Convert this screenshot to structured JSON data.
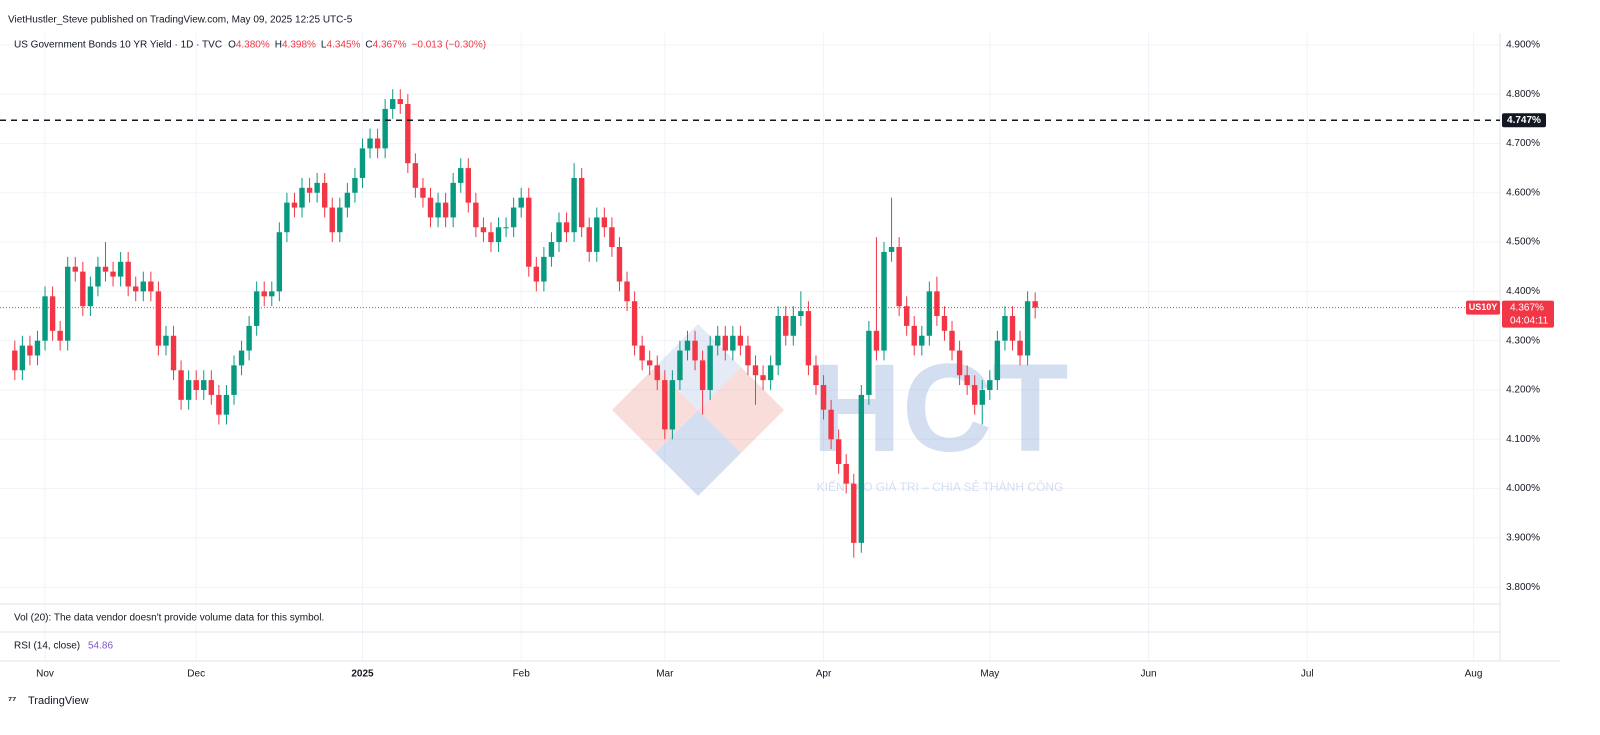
{
  "header": {
    "publisher": "VietHustler_Steve published on TradingView.com, May 09, 2025 12:25 UTC-5"
  },
  "chart_data": {
    "type": "candlestick",
    "symbol_title": "US Government Bonds 10 YR Yield · 1D · TVC",
    "ohlc_legend": [
      {
        "key": "O",
        "text": "4.380%"
      },
      {
        "key": "H",
        "text": "4.398%"
      },
      {
        "key": "L",
        "text": "4.345%"
      },
      {
        "key": "C",
        "text": "4.367%"
      }
    ],
    "change": "−0.013 (−0.30%)",
    "up_color": "#089981",
    "down_color": "#f23645",
    "x": [
      -4,
      -3,
      -2,
      -1,
      0,
      1,
      2,
      3,
      4,
      5,
      6,
      7,
      8,
      9,
      10,
      11,
      12,
      13,
      14,
      15,
      16,
      17,
      18,
      19,
      20,
      21,
      22,
      23,
      24,
      25,
      26,
      27,
      28,
      29,
      30,
      31,
      32,
      33,
      34,
      35,
      36,
      37,
      38,
      39,
      40,
      41,
      42,
      43,
      44,
      45,
      46,
      47,
      48,
      49,
      50,
      51,
      52,
      53,
      54,
      55,
      56,
      57,
      58,
      59,
      60,
      61,
      62,
      63,
      64,
      65,
      66,
      67,
      68,
      69,
      70,
      71,
      72,
      73,
      74,
      75,
      76,
      77,
      78,
      79,
      80,
      81,
      82,
      83,
      84,
      85,
      86,
      87,
      88,
      89,
      90,
      91,
      92,
      93,
      94,
      95,
      96,
      97,
      98,
      99,
      100,
      101,
      102,
      103,
      104,
      105,
      106,
      107,
      108,
      109,
      110,
      111,
      112,
      113,
      114,
      115,
      116,
      117,
      118,
      119,
      120,
      121,
      122,
      123,
      124,
      125,
      126,
      127,
      128,
      129,
      130,
      131
    ],
    "open": [
      4.28,
      4.24,
      4.29,
      4.27,
      4.3,
      4.39,
      4.32,
      4.3,
      4.45,
      4.44,
      4.37,
      4.41,
      4.45,
      4.44,
      4.43,
      4.46,
      4.41,
      4.4,
      4.42,
      4.4,
      4.29,
      4.31,
      4.24,
      4.18,
      4.22,
      4.2,
      4.22,
      4.19,
      4.15,
      4.19,
      4.25,
      4.28,
      4.33,
      4.4,
      4.39,
      4.4,
      4.52,
      4.58,
      4.57,
      4.61,
      4.6,
      4.62,
      4.57,
      4.52,
      4.57,
      4.6,
      4.63,
      4.69,
      4.71,
      4.69,
      4.77,
      4.79,
      4.78,
      4.66,
      4.61,
      4.59,
      4.55,
      4.58,
      4.55,
      4.62,
      4.65,
      4.58,
      4.53,
      4.52,
      4.5,
      4.53,
      4.53,
      4.57,
      4.59,
      4.45,
      4.42,
      4.47,
      4.5,
      4.54,
      4.52,
      4.63,
      4.53,
      4.48,
      4.55,
      4.53,
      4.49,
      4.42,
      4.38,
      4.29,
      4.26,
      4.25,
      4.22,
      4.12,
      4.22,
      4.28,
      4.3,
      4.26,
      4.2,
      4.29,
      4.31,
      4.28,
      4.31,
      4.29,
      4.25,
      4.23,
      4.22,
      4.25,
      4.35,
      4.31,
      4.35,
      4.36,
      4.25,
      4.21,
      4.16,
      4.1,
      4.05,
      4.01,
      3.89,
      4.19,
      4.32,
      4.28,
      4.48,
      4.49,
      4.37,
      4.33,
      4.29,
      4.31,
      4.4,
      4.35,
      4.32,
      4.28,
      4.23,
      4.21,
      4.17,
      4.2,
      4.22,
      4.3,
      4.35,
      4.3,
      4.27,
      4.38
    ],
    "high": [
      4.3,
      4.31,
      4.31,
      4.32,
      4.41,
      4.41,
      4.34,
      4.47,
      4.47,
      4.46,
      4.43,
      4.47,
      4.5,
      4.46,
      4.48,
      4.48,
      4.43,
      4.44,
      4.44,
      4.42,
      4.33,
      4.33,
      4.26,
      4.24,
      4.24,
      4.24,
      4.24,
      4.21,
      4.21,
      4.27,
      4.3,
      4.35,
      4.42,
      4.42,
      4.42,
      4.54,
      4.6,
      4.6,
      4.63,
      4.63,
      4.64,
      4.64,
      4.59,
      4.59,
      4.62,
      4.65,
      4.71,
      4.73,
      4.73,
      4.79,
      4.81,
      4.81,
      4.8,
      4.68,
      4.63,
      4.61,
      4.6,
      4.6,
      4.64,
      4.67,
      4.67,
      4.6,
      4.55,
      4.54,
      4.55,
      4.55,
      4.59,
      4.61,
      4.61,
      4.47,
      4.49,
      4.52,
      4.56,
      4.56,
      4.66,
      4.65,
      4.55,
      4.57,
      4.57,
      4.55,
      4.51,
      4.44,
      4.4,
      4.31,
      4.28,
      4.27,
      4.24,
      4.24,
      4.3,
      4.32,
      4.32,
      4.28,
      4.31,
      4.33,
      4.33,
      4.33,
      4.33,
      4.31,
      4.27,
      4.25,
      4.27,
      4.37,
      4.37,
      4.37,
      4.4,
      4.38,
      4.27,
      4.23,
      4.18,
      4.12,
      4.07,
      4.03,
      4.21,
      4.34,
      4.51,
      4.5,
      4.59,
      4.51,
      4.39,
      4.35,
      4.33,
      4.42,
      4.43,
      4.37,
      4.34,
      4.3,
      4.25,
      4.23,
      4.22,
      4.24,
      4.32,
      4.37,
      4.37,
      4.32,
      4.4,
      4.398
    ],
    "low": [
      4.22,
      4.22,
      4.25,
      4.25,
      4.28,
      4.3,
      4.28,
      4.28,
      4.42,
      4.35,
      4.35,
      4.39,
      4.42,
      4.41,
      4.41,
      4.39,
      4.38,
      4.38,
      4.38,
      4.27,
      4.27,
      4.22,
      4.16,
      4.16,
      4.18,
      4.18,
      4.17,
      4.13,
      4.13,
      4.17,
      4.23,
      4.26,
      4.31,
      4.37,
      4.37,
      4.38,
      4.5,
      4.55,
      4.55,
      4.58,
      4.58,
      4.55,
      4.5,
      4.5,
      4.55,
      4.58,
      4.61,
      4.67,
      4.67,
      4.67,
      4.75,
      4.76,
      4.64,
      4.59,
      4.57,
      4.53,
      4.53,
      4.53,
      4.53,
      4.6,
      4.56,
      4.51,
      4.5,
      4.48,
      4.48,
      4.51,
      4.51,
      4.55,
      4.43,
      4.4,
      4.4,
      4.45,
      4.48,
      4.5,
      4.5,
      4.51,
      4.46,
      4.46,
      4.51,
      4.47,
      4.4,
      4.36,
      4.27,
      4.24,
      4.23,
      4.2,
      4.1,
      4.1,
      4.2,
      4.26,
      4.24,
      4.15,
      4.18,
      4.27,
      4.26,
      4.26,
      4.27,
      4.23,
      4.17,
      4.2,
      4.2,
      4.23,
      4.29,
      4.29,
      4.33,
      4.23,
      4.19,
      4.14,
      4.08,
      4.03,
      3.99,
      3.86,
      3.87,
      4.17,
      4.26,
      4.26,
      4.46,
      4.35,
      4.31,
      4.27,
      4.27,
      4.29,
      4.33,
      4.3,
      4.26,
      4.21,
      4.19,
      4.15,
      4.13,
      4.18,
      4.2,
      4.28,
      4.28,
      4.25,
      4.25,
      4.345
    ],
    "close": [
      4.24,
      4.29,
      4.27,
      4.3,
      4.39,
      4.32,
      4.3,
      4.45,
      4.44,
      4.37,
      4.41,
      4.45,
      4.44,
      4.43,
      4.46,
      4.41,
      4.4,
      4.42,
      4.4,
      4.29,
      4.31,
      4.24,
      4.18,
      4.22,
      4.2,
      4.22,
      4.19,
      4.15,
      4.19,
      4.25,
      4.28,
      4.33,
      4.4,
      4.39,
      4.4,
      4.52,
      4.58,
      4.57,
      4.61,
      4.6,
      4.62,
      4.57,
      4.52,
      4.57,
      4.6,
      4.63,
      4.69,
      4.71,
      4.69,
      4.77,
      4.79,
      4.78,
      4.66,
      4.61,
      4.59,
      4.55,
      4.58,
      4.55,
      4.62,
      4.65,
      4.58,
      4.53,
      4.52,
      4.5,
      4.53,
      4.53,
      4.57,
      4.59,
      4.45,
      4.42,
      4.47,
      4.5,
      4.54,
      4.52,
      4.63,
      4.53,
      4.48,
      4.55,
      4.53,
      4.49,
      4.42,
      4.38,
      4.29,
      4.26,
      4.25,
      4.22,
      4.12,
      4.22,
      4.28,
      4.3,
      4.26,
      4.2,
      4.29,
      4.31,
      4.28,
      4.31,
      4.29,
      4.25,
      4.23,
      4.22,
      4.25,
      4.35,
      4.31,
      4.35,
      4.36,
      4.25,
      4.21,
      4.16,
      4.1,
      4.05,
      4.01,
      3.89,
      4.19,
      4.32,
      4.28,
      4.48,
      4.49,
      4.37,
      4.33,
      4.29,
      4.31,
      4.4,
      4.35,
      4.32,
      4.28,
      4.23,
      4.21,
      4.17,
      4.2,
      4.22,
      4.3,
      4.35,
      4.3,
      4.27,
      4.38,
      4.367
    ],
    "xlim": [
      -4.9,
      192.5
    ],
    "xticks": [
      {
        "value": 0,
        "label": "Nov"
      },
      {
        "value": 20,
        "label": "Dec"
      },
      {
        "value": 42,
        "label": "2025"
      },
      {
        "value": 63,
        "label": "Feb"
      },
      {
        "value": 82,
        "label": "Mar"
      },
      {
        "value": 103,
        "label": "Apr"
      },
      {
        "value": 125,
        "label": "May"
      },
      {
        "value": 146,
        "label": "Jun"
      },
      {
        "value": 167,
        "label": "Jul"
      },
      {
        "value": 189,
        "label": "Aug"
      }
    ],
    "ylim": [
      3.768,
      4.924
    ],
    "yticks": [
      {
        "value": 3.8,
        "label": "3.800%"
      },
      {
        "value": 3.9,
        "label": "3.900%"
      },
      {
        "value": 4.0,
        "label": "4.000%"
      },
      {
        "value": 4.1,
        "label": "4.100%"
      },
      {
        "value": 4.2,
        "label": "4.200%"
      },
      {
        "value": 4.3,
        "label": "4.300%"
      },
      {
        "value": 4.4,
        "label": "4.400%"
      },
      {
        "value": 4.5,
        "label": "4.500%"
      },
      {
        "value": 4.6,
        "label": "4.600%"
      },
      {
        "value": 4.7,
        "label": "4.700%"
      },
      {
        "value": 4.8,
        "label": "4.800%"
      },
      {
        "value": 4.9,
        "label": "4.900%"
      }
    ],
    "grid": true,
    "hline": {
      "value": 4.747,
      "label": "4.747%"
    },
    "last_price": {
      "symbol": "US10Y",
      "value": 4.367,
      "label": "4.367%",
      "countdown": "04:04:11"
    }
  },
  "volume_pane": {
    "text": "Vol (20): The data vendor doesn't provide volume data for this symbol."
  },
  "rsi_pane": {
    "label": "RSI (14, close)",
    "value": "54.86"
  },
  "watermark": {
    "logo": "HCT",
    "slogan": "KIẾN TẠO GIÁ TRỊ – CHIA SẺ THÀNH CÔNG"
  },
  "footer": {
    "brand": "TradingView"
  }
}
